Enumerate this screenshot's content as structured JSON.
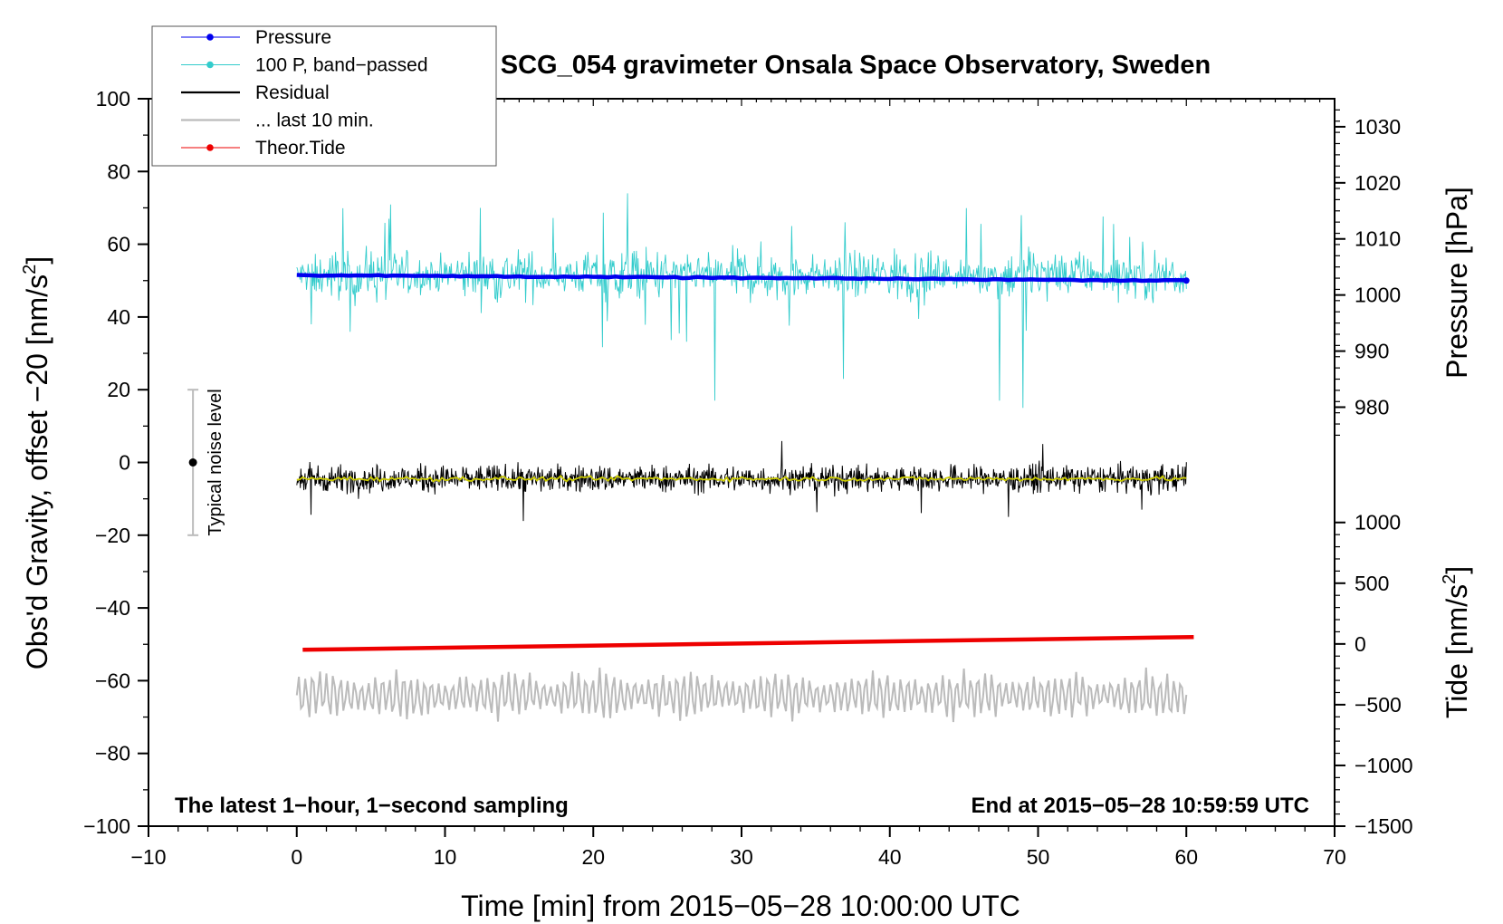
{
  "chart_data": {
    "type": "line",
    "title": "SCG_054 gravimeter Onsala Space Observatory, Sweden",
    "xlabel": "Time [min] from 2015−05−28 10:00:00 UTC",
    "ylabel_left": "Obs'd Gravity, offset −20 [nm/s",
    "ylabel_left_sup": "2",
    "ylabel_left_tail": "]",
    "ylabel_right_pressure": "Pressure [hPa]",
    "ylabel_right_tide": "Tide [nm/s",
    "ylabel_right_tide_sup": "2",
    "ylabel_right_tide_tail": "]",
    "xlim": [
      -10,
      70
    ],
    "ylim_left": [
      -100,
      100
    ],
    "x_ticks": [
      "−10",
      "0",
      "10",
      "20",
      "30",
      "40",
      "50",
      "60",
      "70"
    ],
    "x_tick_values": [
      -10,
      0,
      10,
      20,
      30,
      40,
      50,
      60,
      70
    ],
    "y_ticks_left": [
      "100",
      "80",
      "60",
      "40",
      "20",
      "0",
      "−20",
      "−40",
      "−60",
      "−80",
      "−100"
    ],
    "y_tick_values_left": [
      100,
      80,
      60,
      40,
      20,
      0,
      -20,
      -40,
      -60,
      -80,
      -100
    ],
    "pressure_ticks": [
      "1030",
      "1020",
      "1010",
      "1000",
      "990",
      "980"
    ],
    "pressure_tick_values": [
      1030,
      1020,
      1010,
      1000,
      990,
      980
    ],
    "pressure_mapping": {
      "hpa_a": 1030,
      "left_a": 92.3,
      "hpa_b": 980,
      "left_b": 15.2
    },
    "tide_ticks": [
      "1000",
      "500",
      "0",
      "−500",
      "−1000",
      "−1500"
    ],
    "tide_tick_values": [
      1000,
      500,
      0,
      -500,
      -1000,
      -1500
    ],
    "tide_mapping": {
      "tide_a": 1000,
      "left_a": -16.5,
      "tide_b": -1500,
      "left_b": -100
    },
    "legend": [
      {
        "label": "Pressure",
        "color": "#0000ee",
        "marker": true
      },
      {
        "label": "100 P, band−passed",
        "color": "#33cccc",
        "marker": true
      },
      {
        "label": "Residual",
        "color": "#000000",
        "marker": false
      },
      {
        "label": "... last 10 min.",
        "color": "#bbbbbb",
        "marker": false
      },
      {
        "label": "Theor.Tide",
        "color": "#ee0000",
        "marker": true
      }
    ],
    "noise_label": "Typical noise level",
    "noise_bar": {
      "x": -7,
      "center": 0,
      "half_range": 20
    },
    "note_left": "The latest 1−hour, 1−second sampling",
    "note_right": "End at 2015−05−28 10:59:59 UTC",
    "series": [
      {
        "name": "Pressure",
        "color": "#0000ee",
        "x_range": [
          0,
          60
        ],
        "y_start": 51.5,
        "y_end": 50.0
      },
      {
        "name": "100 P, band−passed",
        "color": "#33cccc",
        "x_range": [
          0,
          60
        ],
        "baseline": 51.5,
        "amplitude": 7,
        "spikes": [
          [
            6.2,
            67
          ],
          [
            12.4,
            70
          ],
          [
            22.3,
            74
          ],
          [
            28.2,
            17
          ],
          [
            33.4,
            65
          ],
          [
            36.9,
            23
          ],
          [
            47.4,
            17
          ],
          [
            49.0,
            15
          ],
          [
            48.9,
            68
          ],
          [
            56.2,
            62
          ]
        ]
      },
      {
        "name": "Residual",
        "color": "#000000",
        "x_range": [
          0,
          60
        ],
        "baseline": -4.5,
        "amplitude": 6
      },
      {
        "name": "Residual mean",
        "color": "#cccc00",
        "x_range": [
          0,
          60
        ],
        "baseline": -4.5
      },
      {
        "name": "Theor.Tide",
        "color": "#ee0000",
        "x_range": [
          0,
          60.5
        ],
        "y_start": -51.5,
        "y_end": -48.0
      },
      {
        "name": "... last 10 min.",
        "color": "#bbbbbb",
        "x_range": [
          0,
          60
        ],
        "baseline": -64,
        "amplitude": 6
      }
    ]
  }
}
